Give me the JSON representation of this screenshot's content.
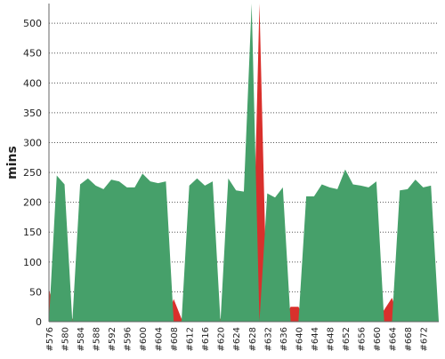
{
  "chart_data": {
    "type": "area",
    "y_label": "mins",
    "categories": [
      "#576",
      null,
      "#580",
      null,
      "#584",
      null,
      "#588",
      null,
      "#592",
      null,
      "#596",
      null,
      "#600",
      null,
      "#604",
      null,
      "#608",
      null,
      "#612",
      null,
      "#616",
      null,
      "#620",
      null,
      "#624",
      null,
      "#628",
      null,
      "#632",
      null,
      "#636",
      null,
      "#640",
      null,
      "#644",
      null,
      "#648",
      null,
      "#652",
      null,
      "#656",
      null,
      "#660",
      null,
      "#664",
      null,
      "#668",
      null,
      "#672",
      null,
      null
    ],
    "series": [
      {
        "color": "#d9302c",
        "values": [
          55,
          0,
          0,
          5,
          0,
          0,
          0,
          0,
          0,
          0,
          0,
          0,
          0,
          0,
          0,
          0,
          38,
          5,
          0,
          0,
          0,
          0,
          5,
          0,
          0,
          0,
          0,
          533,
          0,
          0,
          0,
          25,
          25,
          0,
          0,
          0,
          0,
          0,
          0,
          0,
          0,
          0,
          0,
          20,
          40,
          0,
          0,
          0,
          0,
          0,
          0
        ]
      },
      {
        "color": "#46a06a",
        "values": [
          0,
          245,
          230,
          0,
          230,
          240,
          228,
          222,
          238,
          235,
          225,
          225,
          248,
          235,
          232,
          235,
          0,
          0,
          228,
          240,
          228,
          235,
          0,
          240,
          220,
          218,
          533,
          0,
          215,
          208,
          225,
          0,
          0,
          210,
          210,
          230,
          225,
          222,
          255,
          230,
          228,
          225,
          235,
          0,
          0,
          220,
          222,
          238,
          225,
          228,
          0
        ]
      }
    ],
    "ylim": [
      0,
      533
    ],
    "yticks": [
      0,
      50,
      100,
      150,
      200,
      250,
      300,
      350,
      400,
      450,
      500
    ],
    "grid": true
  }
}
